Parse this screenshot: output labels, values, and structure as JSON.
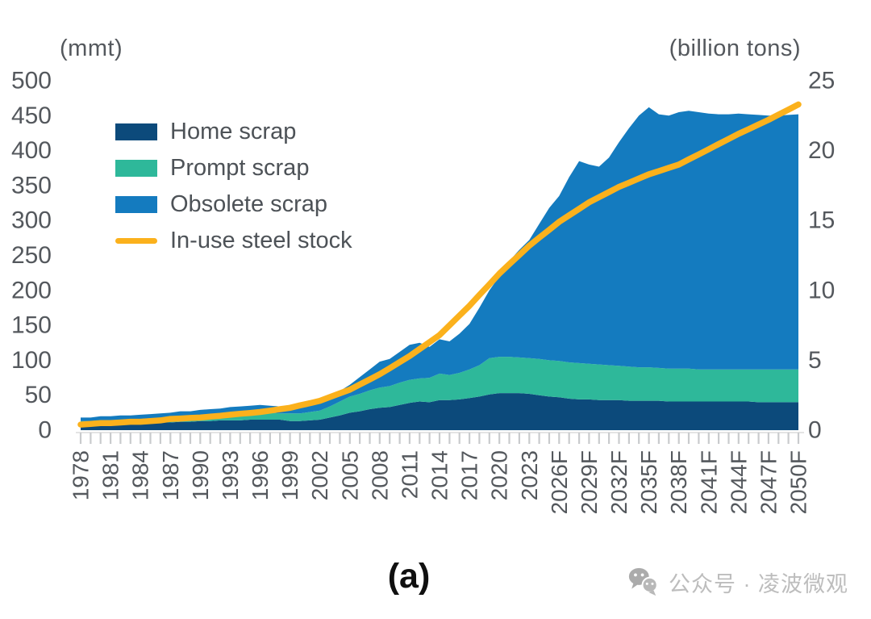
{
  "page": {
    "caption": "(a)",
    "watermark_text": "公众号 · 凌波微观",
    "watermark_icon": "wechat-icon"
  },
  "colors": {
    "home_scrap": "#0c4a7b",
    "prompt_scrap": "#2eb89a",
    "obsolete_scrap": "#147bbf",
    "in_use_steel_stock": "#fbb11c",
    "axis_text": "#54585d",
    "legend_text": "#4d5257",
    "tick_line": "#c9cbcd",
    "axis_hairline": "#dcdcdc",
    "caption_text": "#101010",
    "watermark_gray": "#bdbdbd"
  },
  "chart_data": {
    "type": "area",
    "subtype": "stacked-area-with-line",
    "grid": false,
    "legend_position": "top-left",
    "left_axis": {
      "unit_label": "(mmt)",
      "range": [
        0,
        500
      ],
      "ticks": [
        0,
        50,
        100,
        150,
        200,
        250,
        300,
        350,
        400,
        450,
        500
      ]
    },
    "right_axis": {
      "unit_label": "(billion tons)",
      "range": [
        0,
        25
      ],
      "ticks": [
        0,
        5,
        10,
        15,
        20,
        25
      ]
    },
    "x_axis": {
      "start_year": 1978,
      "end_year": 2050,
      "tick_every_year": true,
      "label_interval": 3,
      "labels": [
        "1978",
        "1981",
        "1984",
        "1987",
        "1990",
        "1993",
        "1996",
        "1999",
        "2002",
        "2005",
        "2008",
        "2011",
        "2014",
        "2017",
        "2020",
        "2023",
        "2026F",
        "2029F",
        "2032F",
        "2035F",
        "2038F",
        "2041F",
        "2044F",
        "2047F",
        "2050F"
      ]
    },
    "years": [
      1978,
      1979,
      1980,
      1981,
      1982,
      1983,
      1984,
      1985,
      1986,
      1987,
      1988,
      1989,
      1990,
      1991,
      1992,
      1993,
      1994,
      1995,
      1996,
      1997,
      1998,
      1999,
      2000,
      2001,
      2002,
      2003,
      2004,
      2005,
      2006,
      2007,
      2008,
      2009,
      2010,
      2011,
      2012,
      2013,
      2014,
      2015,
      2016,
      2017,
      2018,
      2019,
      2020,
      2021,
      2022,
      2023,
      2024,
      2025,
      2026,
      2027,
      2028,
      2029,
      2030,
      2031,
      2032,
      2033,
      2034,
      2035,
      2036,
      2037,
      2038,
      2039,
      2040,
      2041,
      2042,
      2043,
      2044,
      2045,
      2046,
      2047,
      2048,
      2049,
      2050
    ],
    "series": [
      {
        "name": "Home scrap",
        "type": "area-stack",
        "axis": "left",
        "unit": "mmt",
        "color": "#0c4a7b",
        "values": [
          7,
          7,
          8,
          8,
          9,
          9,
          10,
          10,
          11,
          11,
          12,
          12,
          13,
          13,
          14,
          14,
          14,
          15,
          15,
          15,
          15,
          13,
          13,
          14,
          15,
          18,
          21,
          25,
          27,
          30,
          32,
          33,
          36,
          39,
          41,
          40,
          43,
          43,
          44,
          46,
          48,
          51,
          53,
          53,
          53,
          52,
          50,
          48,
          47,
          45,
          44,
          44,
          43,
          43,
          43,
          42,
          42,
          42,
          42,
          41,
          41,
          41,
          41,
          41,
          41,
          41,
          41,
          41,
          40,
          40,
          40,
          40,
          40
        ]
      },
      {
        "name": "Prompt scrap",
        "type": "area-stack",
        "axis": "left",
        "unit": "mmt",
        "color": "#2eb89a",
        "values": [
          6,
          6,
          6,
          6,
          6,
          6,
          6,
          7,
          6,
          7,
          7,
          7,
          7,
          7,
          7,
          8,
          9,
          9,
          10,
          10,
          9,
          11,
          11,
          12,
          13,
          16,
          20,
          23,
          25,
          27,
          29,
          30,
          32,
          33,
          33,
          35,
          38,
          36,
          38,
          41,
          45,
          52,
          52,
          52,
          51,
          51,
          52,
          52,
          52,
          52,
          52,
          51,
          51,
          50,
          49,
          49,
          48,
          48,
          47,
          47,
          47,
          47,
          46,
          46,
          46,
          46,
          46,
          46,
          47,
          47,
          47,
          47,
          47
        ]
      },
      {
        "name": "Obsolete scrap",
        "type": "area-stack",
        "axis": "left",
        "unit": "mmt",
        "color": "#147bbf",
        "values": [
          5,
          5,
          6,
          6,
          6,
          6,
          6,
          6,
          7,
          7,
          8,
          8,
          9,
          10,
          10,
          11,
          11,
          11,
          11,
          10,
          10,
          9,
          9,
          10,
          10,
          13,
          15,
          17,
          24,
          30,
          37,
          39,
          44,
          50,
          51,
          44,
          49,
          48,
          56,
          65,
          82,
          97,
          115,
          137,
          154,
          169,
          193,
          218,
          236,
          265,
          289,
          285,
          283,
          297,
          320,
          341,
          360,
          372,
          363,
          362,
          367,
          369,
          368,
          366,
          365,
          365,
          366,
          365,
          364,
          363,
          363,
          364,
          365
        ]
      },
      {
        "name": "In-use steel stock",
        "type": "line",
        "axis": "right",
        "unit": "billion tons",
        "color": "#fbb11c",
        "values": [
          0.4,
          0.45,
          0.5,
          0.5,
          0.55,
          0.6,
          0.6,
          0.65,
          0.7,
          0.8,
          0.83,
          0.87,
          0.9,
          0.97,
          1.03,
          1.1,
          1.17,
          1.23,
          1.3,
          1.4,
          1.5,
          1.6,
          1.77,
          1.93,
          2.1,
          2.37,
          2.63,
          2.9,
          3.27,
          3.63,
          4.0,
          4.43,
          4.87,
          5.3,
          5.8,
          6.3,
          6.8,
          7.5,
          8.2,
          8.9,
          9.67,
          10.43,
          11.2,
          11.87,
          12.53,
          13.2,
          13.77,
          14.33,
          14.9,
          15.37,
          15.83,
          16.3,
          16.67,
          17.03,
          17.4,
          17.7,
          18.0,
          18.3,
          18.53,
          18.77,
          19.0,
          19.37,
          19.73,
          20.1,
          20.47,
          20.83,
          21.2,
          21.53,
          21.87,
          22.2,
          22.57,
          22.93,
          23.3
        ]
      }
    ]
  }
}
